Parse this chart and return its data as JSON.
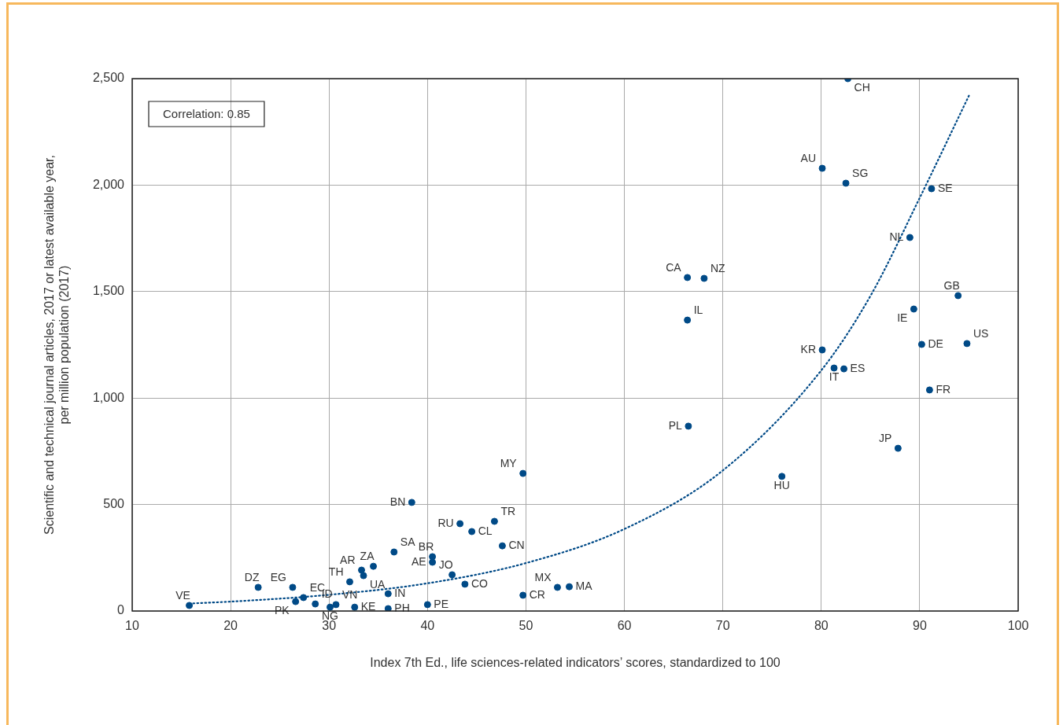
{
  "chart_data": {
    "type": "scatter",
    "xlabel": "Index 7th Ed., life sciences-related indicators’ scores, standardized to 100",
    "ylabel": "Scientific and technical journal articles, 2017 or latest available year, per million population (2017)",
    "xlim": [
      10,
      100
    ],
    "xticks": [
      10,
      20,
      30,
      40,
      50,
      60,
      70,
      80,
      90,
      100
    ],
    "ylim": [
      0,
      2500
    ],
    "yticks": [
      {
        "value": 0,
        "label": "0"
      },
      {
        "value": 500,
        "label": "500"
      },
      {
        "value": 1000,
        "label": "1,000"
      },
      {
        "value": 1500,
        "label": "1,500"
      },
      {
        "value": 2000,
        "label": "2,000"
      },
      {
        "value": 2500,
        "label": "2,500"
      }
    ],
    "grid": true,
    "legend": false,
    "marker": "circle",
    "series": [
      {
        "color": "#004a87",
        "x": [
          15.8,
          22.8,
          26.3,
          27.4,
          26.6,
          28.6,
          30.1,
          30.7,
          32.1,
          33.3,
          33.5,
          34.5,
          32.6,
          36.0,
          36.0,
          36.6,
          38.4,
          40.5,
          40.5,
          40.0,
          42.5,
          43.3,
          43.8,
          44.5,
          46.8,
          47.6,
          49.7,
          49.7,
          53.2,
          54.4,
          66.4,
          68.1,
          66.4,
          66.5,
          76.0,
          80.1,
          80.1,
          82.5,
          82.7,
          81.3,
          82.3,
          87.8,
          89.0,
          89.4,
          91.2,
          90.2,
          91.0,
          93.9,
          94.8
        ],
        "values": [
          26,
          111,
          111,
          63,
          44,
          33,
          18,
          30,
          137,
          192,
          166,
          210,
          18,
          81,
          11,
          277,
          510,
          255,
          229,
          30,
          170,
          410,
          126,
          373,
          421,
          306,
          646,
          74,
          111,
          114,
          1566,
          1562,
          1366,
          868,
          632,
          1226,
          2079,
          2009,
          2500,
          1141,
          1137,
          764,
          1754,
          1418,
          1983,
          1252,
          1038,
          1481,
          1256
        ]
      },
      {
        "type": "line",
        "color": "#004a87",
        "line_style": "dotted",
        "marker": "none",
        "x": [
          15.8,
          20,
          30,
          40,
          50,
          60,
          70,
          80,
          85,
          90,
          95
        ],
        "values": [
          35,
          44,
          76,
          130,
          225,
          385,
          660,
          1130,
          1480,
          1940,
          2420
        ]
      }
    ],
    "annotations": [
      "Correlation: 0.85",
      {
        "text": "VE",
        "x": 15.8,
        "y": 26
      },
      {
        "text": "DZ",
        "x": 22.8,
        "y": 111
      },
      {
        "text": "EG",
        "x": 26.3,
        "y": 111
      },
      {
        "text": "EC",
        "x": 27.4,
        "y": 63
      },
      {
        "text": "PK",
        "x": 26.6,
        "y": 44
      },
      {
        "text": "ID",
        "x": 28.6,
        "y": 33
      },
      {
        "text": "NG",
        "x": 30.1,
        "y": 18
      },
      {
        "text": "VN",
        "x": 30.7,
        "y": 30
      },
      {
        "text": "TH",
        "x": 32.1,
        "y": 137
      },
      {
        "text": "AR",
        "x": 33.3,
        "y": 192
      },
      {
        "text": "UA",
        "x": 33.5,
        "y": 166
      },
      {
        "text": "ZA",
        "x": 34.5,
        "y": 210
      },
      {
        "text": "KE",
        "x": 32.6,
        "y": 18
      },
      {
        "text": "IN",
        "x": 36.0,
        "y": 81
      },
      {
        "text": "PH",
        "x": 36.0,
        "y": 11
      },
      {
        "text": "SA",
        "x": 36.6,
        "y": 277
      },
      {
        "text": "BN",
        "x": 38.4,
        "y": 510
      },
      {
        "text": "BR",
        "x": 40.5,
        "y": 255
      },
      {
        "text": "AE",
        "x": 40.5,
        "y": 229
      },
      {
        "text": "PE",
        "x": 40.0,
        "y": 30
      },
      {
        "text": "JO",
        "x": 42.5,
        "y": 170
      },
      {
        "text": "RU",
        "x": 43.3,
        "y": 410
      },
      {
        "text": "CO",
        "x": 43.8,
        "y": 126
      },
      {
        "text": "CL",
        "x": 44.5,
        "y": 373
      },
      {
        "text": "TR",
        "x": 46.8,
        "y": 421
      },
      {
        "text": "CN",
        "x": 47.6,
        "y": 306
      },
      {
        "text": "MY",
        "x": 49.7,
        "y": 646
      },
      {
        "text": "CR",
        "x": 49.7,
        "y": 74
      },
      {
        "text": "MX",
        "x": 53.2,
        "y": 111
      },
      {
        "text": "MA",
        "x": 54.4,
        "y": 114
      },
      {
        "text": "CA",
        "x": 66.4,
        "y": 1566
      },
      {
        "text": "NZ",
        "x": 68.1,
        "y": 1562
      },
      {
        "text": "IL",
        "x": 66.4,
        "y": 1366
      },
      {
        "text": "PL",
        "x": 66.5,
        "y": 868
      },
      {
        "text": "HU",
        "x": 76.0,
        "y": 632
      },
      {
        "text": "KR",
        "x": 80.1,
        "y": 1226
      },
      {
        "text": "AU",
        "x": 80.1,
        "y": 2079
      },
      {
        "text": "SG",
        "x": 82.5,
        "y": 2009
      },
      {
        "text": "CH",
        "x": 82.7,
        "y": 2500
      },
      {
        "text": "IT",
        "x": 81.3,
        "y": 1141
      },
      {
        "text": "ES",
        "x": 82.3,
        "y": 1137
      },
      {
        "text": "JP",
        "x": 87.8,
        "y": 764
      },
      {
        "text": "NL",
        "x": 89.0,
        "y": 1754
      },
      {
        "text": "IE",
        "x": 89.4,
        "y": 1418
      },
      {
        "text": "SE",
        "x": 91.2,
        "y": 1983
      },
      {
        "text": "DE",
        "x": 90.2,
        "y": 1252
      },
      {
        "text": "FR",
        "x": 91.0,
        "y": 1038
      },
      {
        "text": "GB",
        "x": 93.9,
        "y": 1481
      },
      {
        "text": "US",
        "x": 94.8,
        "y": 1256
      }
    ]
  }
}
